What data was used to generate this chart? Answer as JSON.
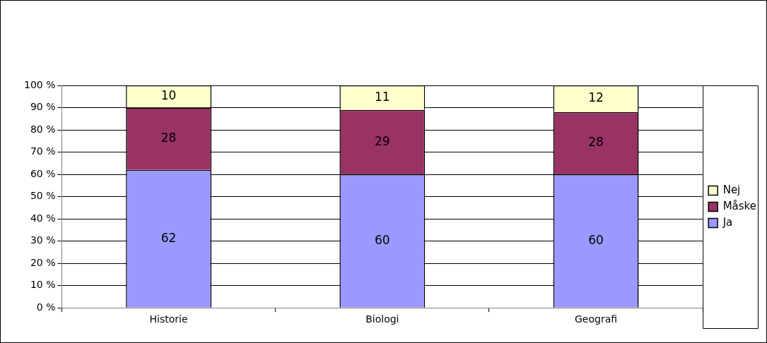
{
  "chart_data": {
    "type": "bar",
    "stacked": true,
    "categories": [
      "Historie",
      "Biologi",
      "Geografi"
    ],
    "series": [
      {
        "name": "Ja",
        "color": "#9999ff",
        "values": [
          62,
          60,
          60
        ]
      },
      {
        "name": "Måske",
        "color": "#993366",
        "values": [
          28,
          29,
          28
        ]
      },
      {
        "name": "Nej",
        "color": "#ffffcc",
        "values": [
          10,
          11,
          12
        ]
      }
    ],
    "ylim": [
      0,
      100
    ],
    "yticks": [
      {
        "value": 0,
        "label": "0 %"
      },
      {
        "value": 10,
        "label": "10 %"
      },
      {
        "value": 20,
        "label": "20 %"
      },
      {
        "value": 30,
        "label": "30 %"
      },
      {
        "value": 40,
        "label": "40 %"
      },
      {
        "value": 50,
        "label": "50 %"
      },
      {
        "value": 60,
        "label": "60 %"
      },
      {
        "value": 70,
        "label": "70 %"
      },
      {
        "value": 80,
        "label": "80 %"
      },
      {
        "value": 90,
        "label": "90 %"
      },
      {
        "value": 100,
        "label": "100 %"
      }
    ],
    "grid": "y",
    "legend": "right",
    "data_labels": true
  }
}
